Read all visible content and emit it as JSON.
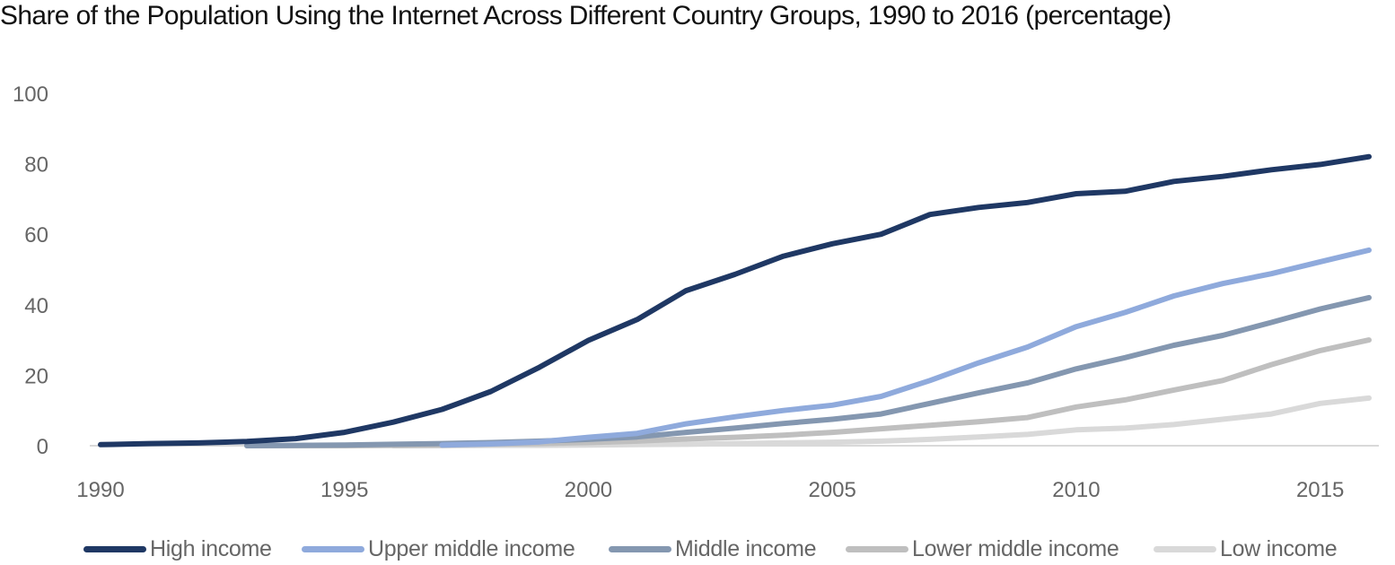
{
  "title": "Share of the Population Using the Internet Across Different Country Groups, 1990 to 2016 (percentage)",
  "chart_data": {
    "type": "line",
    "title": "Share of the Population Using the Internet Across Different Country Groups, 1990 to 2016 (percentage)",
    "xlabel": "",
    "ylabel": "",
    "xlim": [
      1990,
      2016
    ],
    "ylim": [
      0,
      100
    ],
    "x_ticks": [
      "1990",
      "1995",
      "2000",
      "2005",
      "2010",
      "2015"
    ],
    "y_ticks": [
      "0",
      "20",
      "40",
      "60",
      "80",
      "100"
    ],
    "grid": false,
    "legend_position": "bottom",
    "x": [
      1990,
      1991,
      1992,
      1993,
      1994,
      1995,
      1996,
      1997,
      1998,
      1999,
      2000,
      2001,
      2002,
      2003,
      2004,
      2005,
      2006,
      2007,
      2008,
      2009,
      2010,
      2011,
      2012,
      2013,
      2014,
      2015,
      2016
    ],
    "series": [
      {
        "name": "High income",
        "color": "#1f3864",
        "values": [
          0.3,
          0.6,
          0.8,
          1.2,
          2.0,
          3.8,
          6.7,
          10.3,
          15.4,
          22.3,
          29.9,
          35.8,
          44.0,
          48.6,
          53.8,
          57.3,
          60.0,
          65.6,
          67.6,
          69.0,
          71.5,
          72.2,
          75.0,
          76.4,
          78.3,
          79.8,
          82.0
        ]
      },
      {
        "name": "Upper middle income",
        "color": "#8faadc",
        "values": [
          null,
          null,
          null,
          null,
          null,
          null,
          null,
          0.2,
          0.5,
          1.1,
          2.4,
          3.5,
          6.2,
          8.2,
          10.0,
          11.5,
          14.0,
          18.5,
          23.5,
          28.0,
          33.8,
          37.8,
          42.5,
          46.0,
          48.8,
          52.2,
          55.5
        ]
      },
      {
        "name": "Middle income",
        "color": "#8497b0",
        "values": [
          null,
          null,
          null,
          0.0,
          0.1,
          0.2,
          0.4,
          0.6,
          0.9,
          1.3,
          1.8,
          2.5,
          3.8,
          5.0,
          6.3,
          7.5,
          9.0,
          12.0,
          15.0,
          17.8,
          21.8,
          25.0,
          28.5,
          31.3,
          35.0,
          38.8,
          42.0
        ]
      },
      {
        "name": "Lower middle income",
        "color": "#bfbfbf",
        "values": [
          null,
          null,
          null,
          0.0,
          0.0,
          0.0,
          0.1,
          0.2,
          0.4,
          0.6,
          0.9,
          1.3,
          1.9,
          2.4,
          3.0,
          3.8,
          4.8,
          5.8,
          6.8,
          8.0,
          11.0,
          13.0,
          15.8,
          18.5,
          23.0,
          27.0,
          30.0
        ]
      },
      {
        "name": "Low income",
        "color": "#d9d9d9",
        "values": [
          null,
          null,
          null,
          null,
          null,
          null,
          0.0,
          0.0,
          0.1,
          0.1,
          0.2,
          0.3,
          0.4,
          0.6,
          0.8,
          1.0,
          1.3,
          1.8,
          2.5,
          3.2,
          4.5,
          5.0,
          6.0,
          7.5,
          9.0,
          12.0,
          13.5
        ]
      }
    ]
  }
}
